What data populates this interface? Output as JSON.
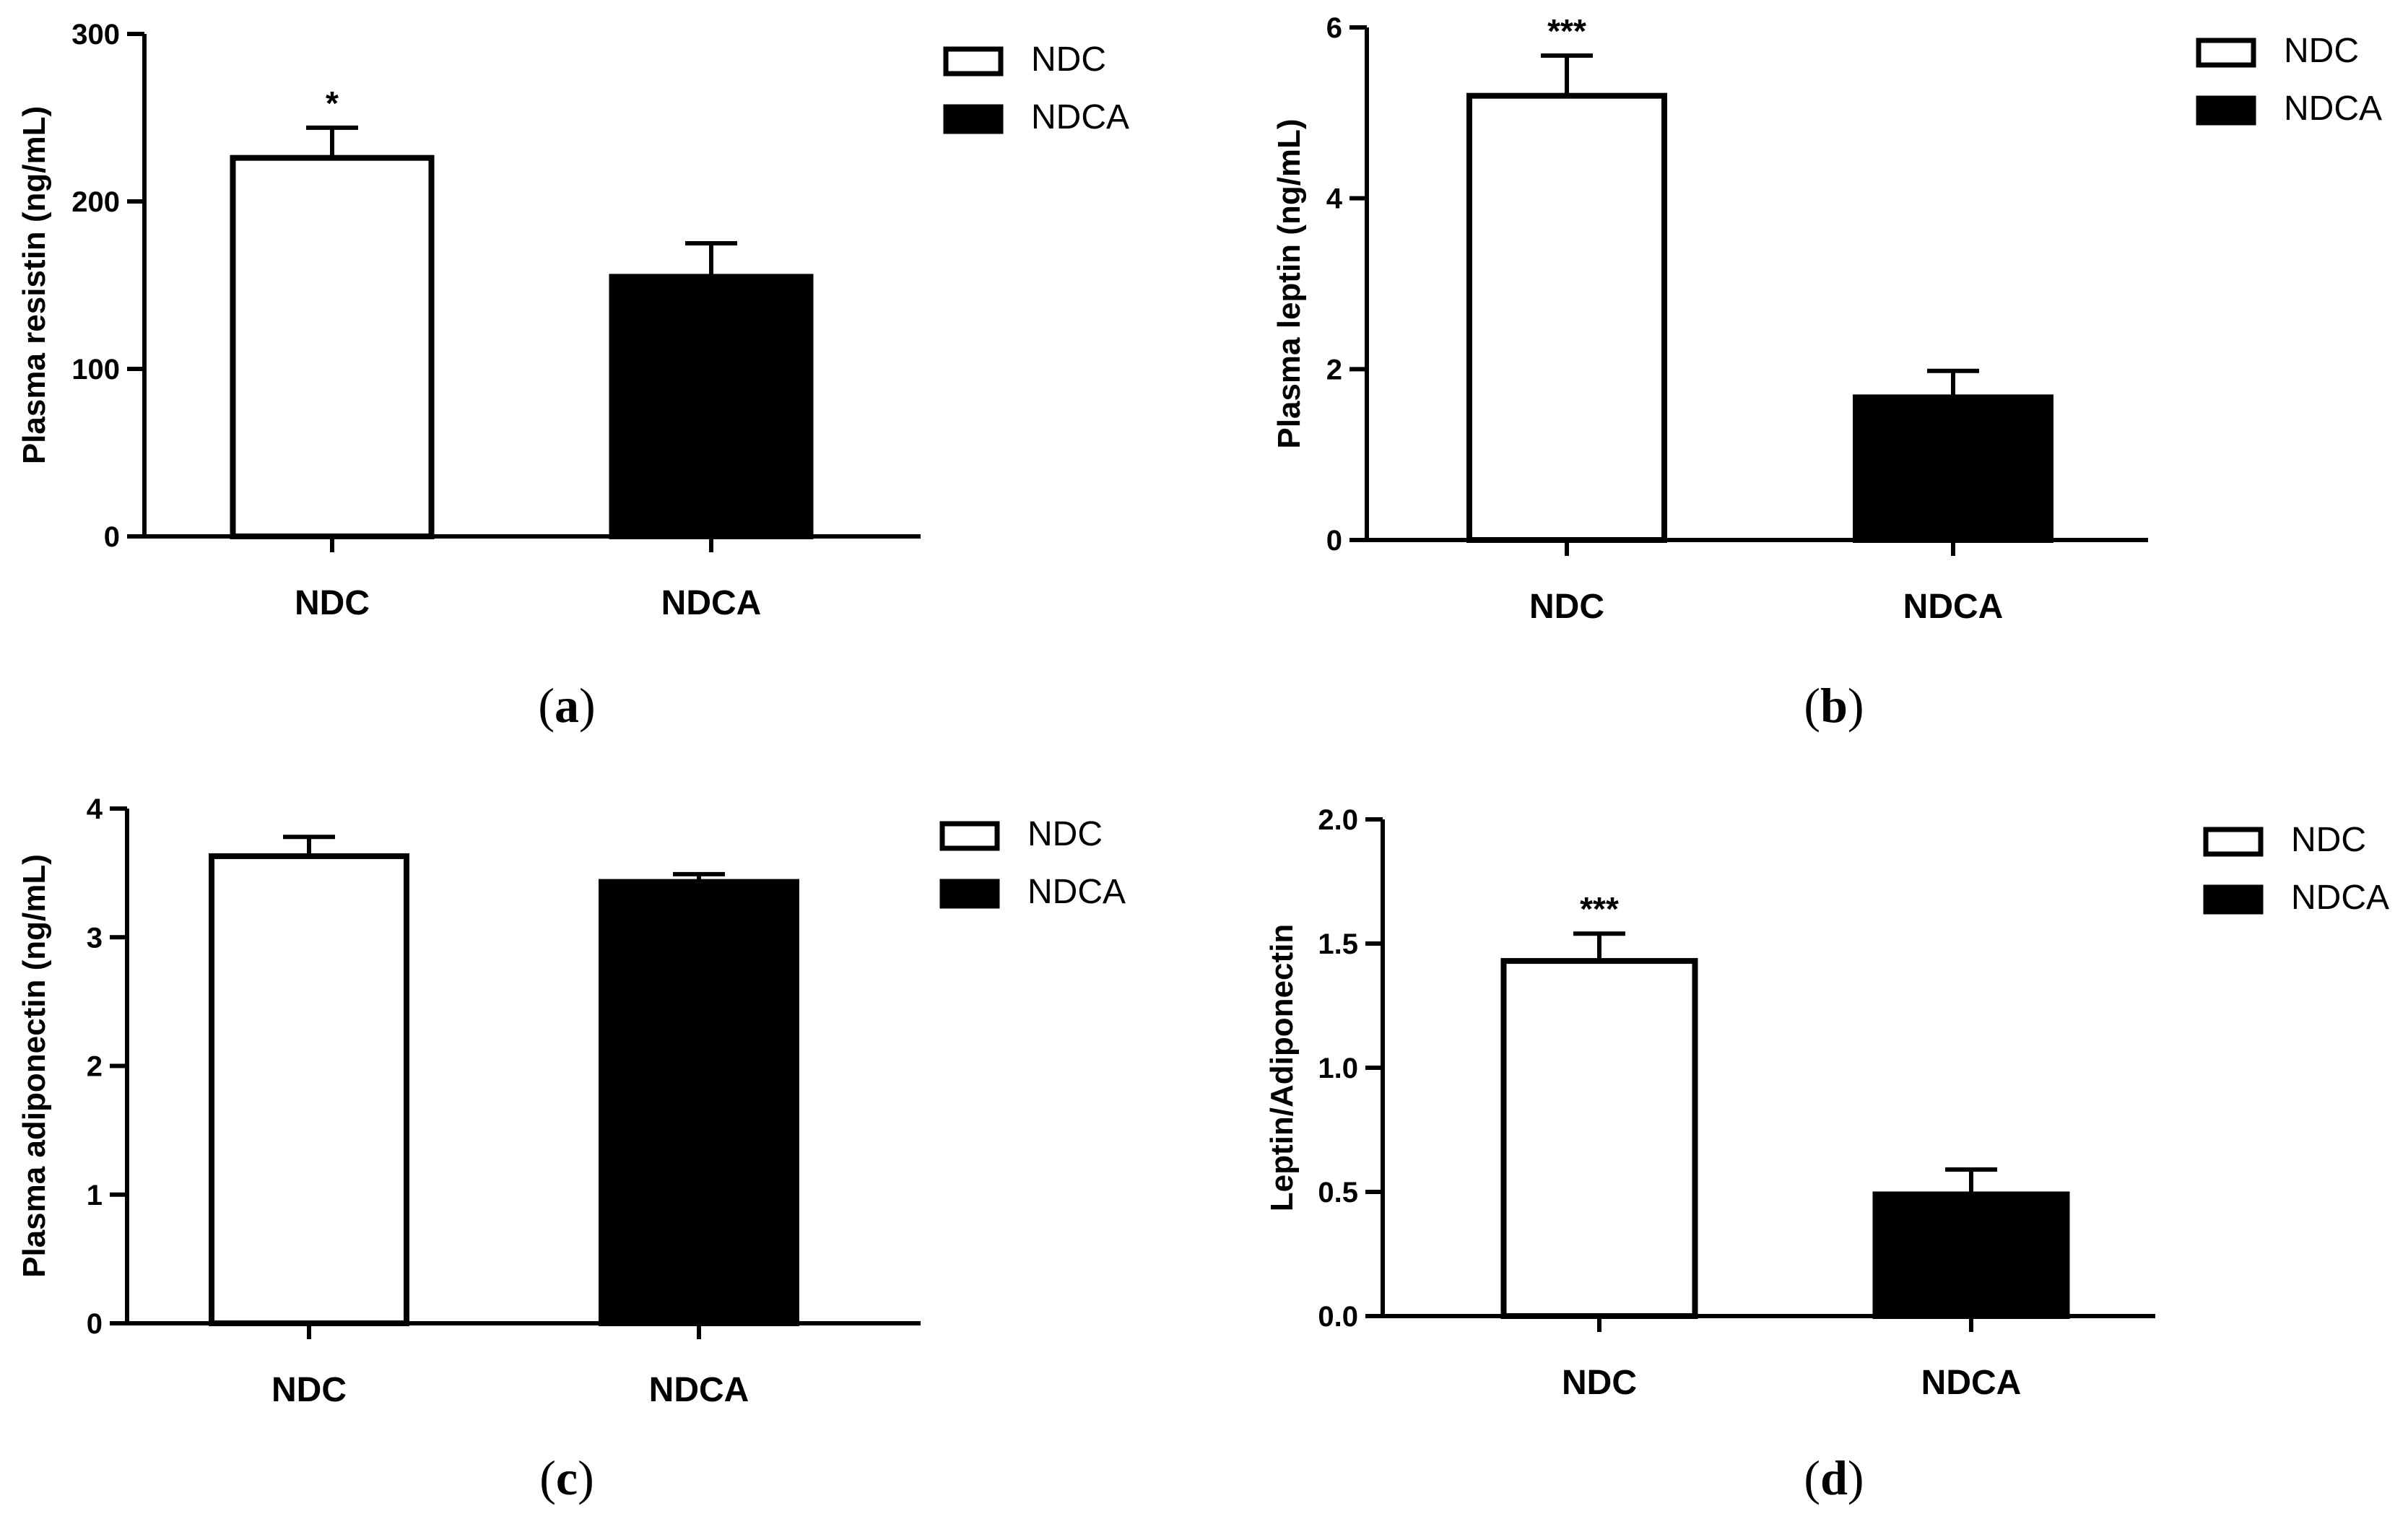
{
  "chart_data": [
    {
      "id": "a",
      "type": "bar",
      "panel_label": "a",
      "title": "",
      "xlabel": "",
      "ylabel": "Plasma resistin (ng/mL)",
      "ylim": [
        0,
        300
      ],
      "yticks": [
        0,
        100,
        200,
        300
      ],
      "ytick_labels": [
        "0",
        "100",
        "200",
        "300"
      ],
      "categories": [
        "NDC",
        "NDCA"
      ],
      "values": [
        226,
        155
      ],
      "errors": [
        18,
        20
      ],
      "fills": [
        "#ffffff",
        "#000000"
      ],
      "significance": [
        "*",
        ""
      ],
      "legend": [
        {
          "label": "NDC",
          "fill": "#ffffff"
        },
        {
          "label": "NDCA",
          "fill": "#000000"
        }
      ]
    },
    {
      "id": "b",
      "type": "bar",
      "panel_label": "b",
      "title": "",
      "xlabel": "",
      "ylabel": "Plasma leptin (ng/mL)",
      "ylim": [
        0,
        6
      ],
      "yticks": [
        0,
        2,
        4,
        6
      ],
      "ytick_labels": [
        "0",
        "2",
        "4",
        "6"
      ],
      "categories": [
        "NDC",
        "NDCA"
      ],
      "values": [
        5.2,
        1.67
      ],
      "errors": [
        0.47,
        0.31
      ],
      "fills": [
        "#ffffff",
        "#000000"
      ],
      "significance": [
        "***",
        ""
      ],
      "legend": [
        {
          "label": "NDC",
          "fill": "#ffffff"
        },
        {
          "label": "NDCA",
          "fill": "#000000"
        }
      ]
    },
    {
      "id": "c",
      "type": "bar",
      "panel_label": "c",
      "title": "",
      "xlabel": "",
      "ylabel": "Plasma adiponectin (ng/mL)",
      "ylim": [
        0,
        4
      ],
      "yticks": [
        0,
        1,
        2,
        3,
        4
      ],
      "ytick_labels": [
        "0",
        "1",
        "2",
        "3",
        "4"
      ],
      "categories": [
        "NDC",
        "NDCA"
      ],
      "values": [
        3.63,
        3.43
      ],
      "errors": [
        0.15,
        0.06
      ],
      "fills": [
        "#ffffff",
        "#000000"
      ],
      "significance": [
        "",
        ""
      ],
      "legend": [
        {
          "label": "NDC",
          "fill": "#ffffff"
        },
        {
          "label": "NDCA",
          "fill": "#000000"
        }
      ]
    },
    {
      "id": "d",
      "type": "bar",
      "panel_label": "d",
      "title": "",
      "xlabel": "",
      "ylabel": "Leptin/Adiponectin",
      "ylim": [
        0,
        2.0
      ],
      "yticks": [
        0,
        0.5,
        1.0,
        1.5,
        2.0
      ],
      "ytick_labels": [
        "0.0",
        "0.5",
        "1.0",
        "1.5",
        "2.0"
      ],
      "categories": [
        "NDC",
        "NDCA"
      ],
      "values": [
        1.43,
        0.49
      ],
      "errors": [
        0.11,
        0.1
      ],
      "fills": [
        "#ffffff",
        "#000000"
      ],
      "significance": [
        "***",
        ""
      ],
      "legend": [
        {
          "label": "NDC",
          "fill": "#ffffff"
        },
        {
          "label": "NDCA",
          "fill": "#000000"
        }
      ]
    }
  ]
}
